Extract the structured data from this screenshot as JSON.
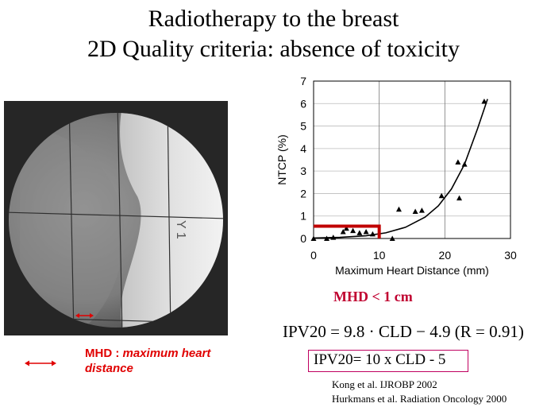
{
  "slide": {
    "title_line1": "Radiotherapy to the breast",
    "title_line2": "2D Quality criteria: absence of toxicity"
  },
  "xray": {
    "marker_text": "Y 1"
  },
  "legend": {
    "abbr": "MHD :",
    "definition_line1": "maximum heart",
    "definition_line2": "distance",
    "accent_color": "#e00000"
  },
  "criterion": {
    "text": "MHD < 1 cm",
    "color": "#c00030"
  },
  "formulas": {
    "fitted": "IPV20 = 9.8 · CLD − 4.9 (R = 0.91)",
    "simplified": "IPV20=  10 x CLD - 5"
  },
  "references": [
    "Kong et al. IJROBP 2002",
    "Hurkmans et al. Radiation Oncology 2000"
  ],
  "chart_data": {
    "type": "scatter",
    "xlabel": "Maximum Heart Distance (mm)",
    "ylabel": "NTCP (%)",
    "xlim": [
      0,
      30
    ],
    "ylim": [
      0,
      7
    ],
    "xticks": [
      "0",
      "10",
      "20",
      "30"
    ],
    "yticks": [
      "0",
      "1",
      "2",
      "3",
      "4",
      "5",
      "6",
      "7"
    ],
    "grid": true,
    "points": [
      {
        "x": 0,
        "y": 0
      },
      {
        "x": 2,
        "y": 0
      },
      {
        "x": 3,
        "y": 0.05
      },
      {
        "x": 4.5,
        "y": 0.3
      },
      {
        "x": 5,
        "y": 0.45
      },
      {
        "x": 6,
        "y": 0.35
      },
      {
        "x": 7,
        "y": 0.25
      },
      {
        "x": 8,
        "y": 0.3
      },
      {
        "x": 9,
        "y": 0.2
      },
      {
        "x": 12,
        "y": 0
      },
      {
        "x": 13,
        "y": 1.3
      },
      {
        "x": 15.5,
        "y": 1.2
      },
      {
        "x": 16.5,
        "y": 1.25
      },
      {
        "x": 19.5,
        "y": 1.9
      },
      {
        "x": 22,
        "y": 3.4
      },
      {
        "x": 22.2,
        "y": 1.8
      },
      {
        "x": 23,
        "y": 3.3
      },
      {
        "x": 26,
        "y": 6.1
      }
    ],
    "fit_curve": [
      {
        "x": 0,
        "y": 0.02
      },
      {
        "x": 4,
        "y": 0.05
      },
      {
        "x": 8,
        "y": 0.12
      },
      {
        "x": 11,
        "y": 0.25
      },
      {
        "x": 14,
        "y": 0.5
      },
      {
        "x": 17,
        "y": 0.95
      },
      {
        "x": 19,
        "y": 1.45
      },
      {
        "x": 21,
        "y": 2.2
      },
      {
        "x": 23,
        "y": 3.3
      },
      {
        "x": 25,
        "y": 4.9
      },
      {
        "x": 26.5,
        "y": 6.2
      }
    ],
    "threshold": {
      "x": 10,
      "y": 0.55,
      "color": "#c00000"
    }
  }
}
